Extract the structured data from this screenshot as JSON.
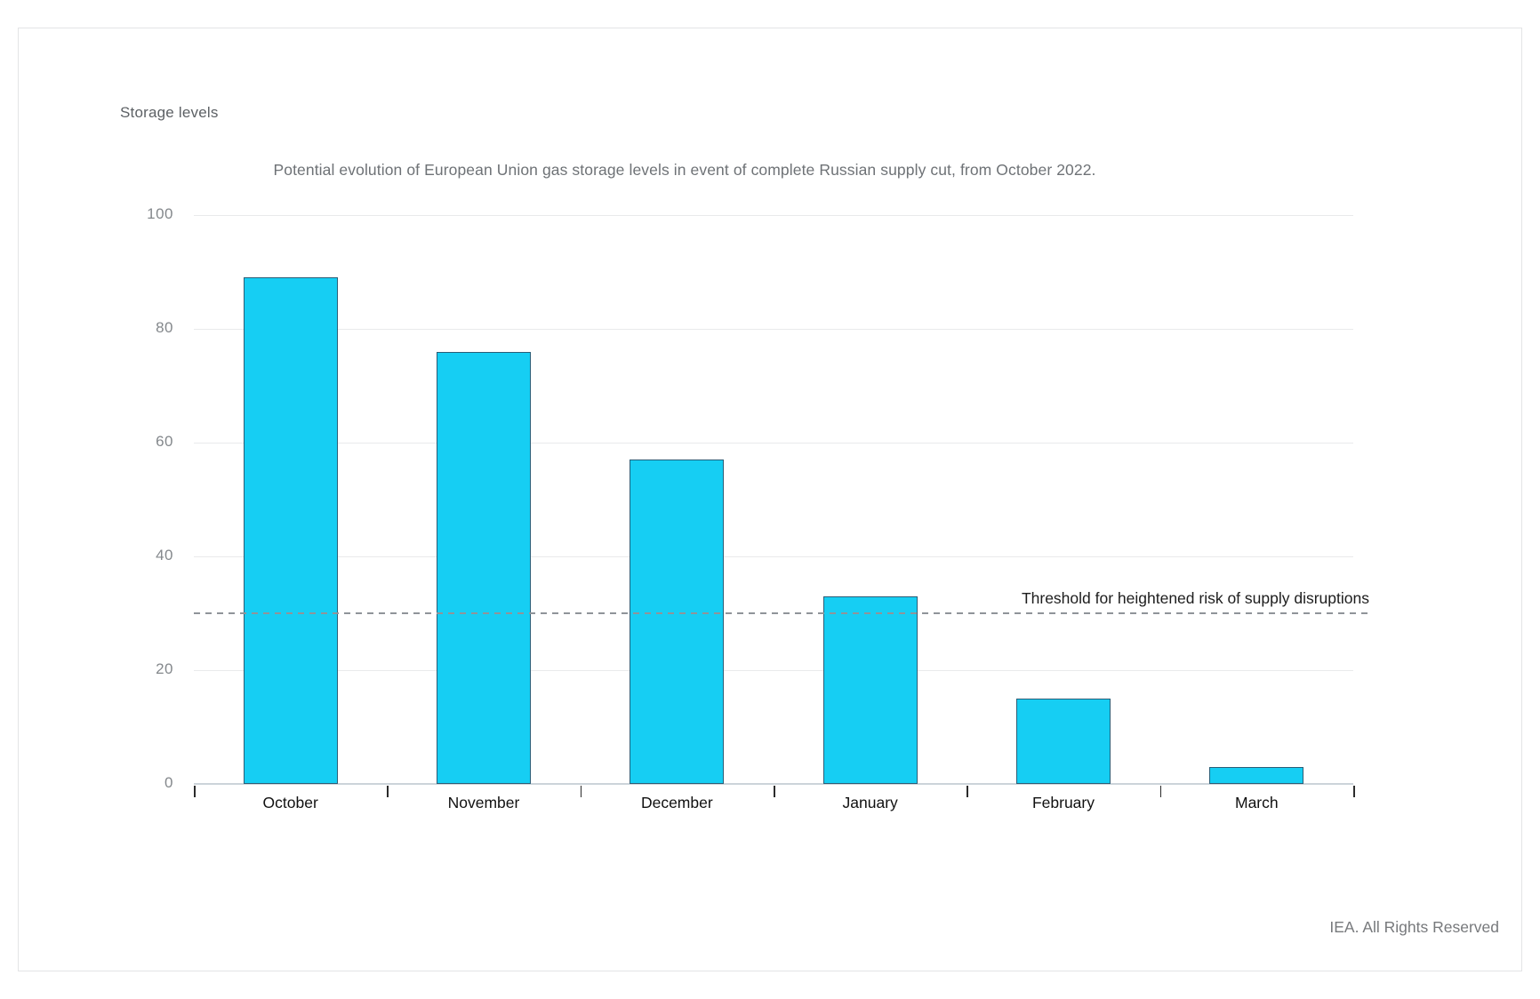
{
  "page": {
    "footer": "IEA. All Rights Reserved"
  },
  "chart_data": {
    "type": "bar",
    "title": "Potential evolution of European Union gas storage levels in event of complete Russian supply cut, from October 2022.",
    "ylabel": "Storage levels",
    "xlabel": "",
    "categories": [
      "October",
      "November",
      "December",
      "January",
      "February",
      "March"
    ],
    "values": [
      89,
      76,
      57,
      33,
      15,
      3
    ],
    "ylim": [
      0,
      100
    ],
    "yticks": [
      0,
      20,
      40,
      60,
      80,
      100
    ],
    "grid": true,
    "legend_position": "none",
    "bar_color": "#16cef3",
    "bar_border_color": "#2a5d76",
    "threshold": {
      "value": 30,
      "label": "Threshold for heightened risk of supply disruptions"
    }
  }
}
